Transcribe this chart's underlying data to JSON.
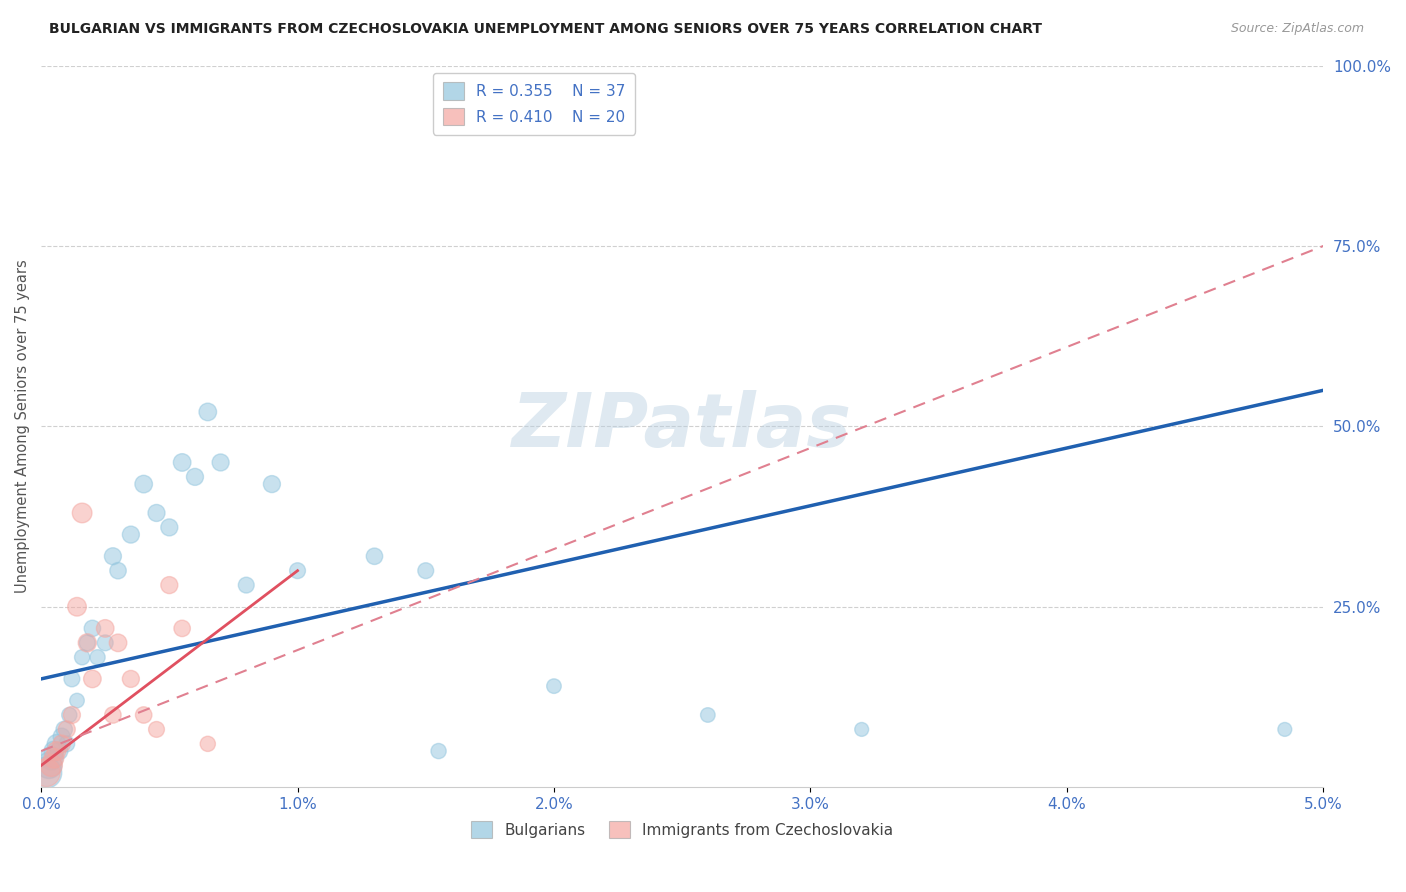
{
  "title": "BULGARIAN VS IMMIGRANTS FROM CZECHOSLOVAKIA UNEMPLOYMENT AMONG SENIORS OVER 75 YEARS CORRELATION CHART",
  "source": "Source: ZipAtlas.com",
  "ylabel": "Unemployment Among Seniors over 75 years",
  "watermark": "ZIPatlas",
  "xlim": [
    0.0,
    5.0
  ],
  "ylim": [
    0.0,
    100.0
  ],
  "legend_r1": "R = 0.355",
  "legend_n1": "N = 37",
  "legend_r2": "R = 0.410",
  "legend_n2": "N = 20",
  "bulgarian_color": "#92c5de",
  "czech_color": "#f4a6a0",
  "trend_blue": "#2060b0",
  "trend_pink_solid": "#e05060",
  "trend_pink_dash": "#e08090",
  "blue_trend_x0": 0.0,
  "blue_trend_y0": 15.0,
  "blue_trend_x1": 5.0,
  "blue_trend_y1": 55.0,
  "pink_solid_x0": 0.0,
  "pink_solid_y0": 3.0,
  "pink_solid_x1": 1.0,
  "pink_solid_y1": 30.0,
  "pink_dash_x0": 0.0,
  "pink_dash_y0": 5.0,
  "pink_dash_x1": 5.0,
  "pink_dash_y1": 75.0,
  "bulgarians_x": [
    0.02,
    0.03,
    0.04,
    0.05,
    0.06,
    0.07,
    0.08,
    0.09,
    0.1,
    0.11,
    0.12,
    0.14,
    0.16,
    0.18,
    0.2,
    0.22,
    0.25,
    0.28,
    0.3,
    0.35,
    0.4,
    0.45,
    0.5,
    0.55,
    0.6,
    0.65,
    0.7,
    0.8,
    0.9,
    1.0,
    1.3,
    1.5,
    1.55,
    2.0,
    2.6,
    3.2,
    4.85
  ],
  "bulgarians_y": [
    2,
    3,
    4,
    5,
    6,
    5,
    7,
    8,
    6,
    10,
    15,
    12,
    18,
    20,
    22,
    18,
    20,
    32,
    30,
    35,
    42,
    38,
    36,
    45,
    43,
    52,
    45,
    28,
    42,
    30,
    32,
    30,
    5,
    14,
    10,
    8,
    8
  ],
  "bulgarians_size": [
    500,
    350,
    280,
    200,
    180,
    160,
    150,
    140,
    130,
    120,
    130,
    110,
    120,
    130,
    140,
    120,
    130,
    150,
    140,
    150,
    160,
    150,
    150,
    160,
    150,
    160,
    150,
    130,
    150,
    130,
    140,
    130,
    120,
    110,
    110,
    100,
    100
  ],
  "czech_x": [
    0.02,
    0.04,
    0.05,
    0.06,
    0.08,
    0.1,
    0.12,
    0.14,
    0.16,
    0.18,
    0.2,
    0.25,
    0.28,
    0.3,
    0.35,
    0.4,
    0.45,
    0.5,
    0.55,
    0.65
  ],
  "czech_y": [
    2,
    3,
    4,
    5,
    6,
    8,
    10,
    25,
    38,
    20,
    15,
    22,
    10,
    20,
    15,
    10,
    8,
    28,
    22,
    6
  ],
  "czech_size": [
    400,
    250,
    200,
    180,
    160,
    150,
    150,
    180,
    200,
    170,
    160,
    160,
    140,
    160,
    150,
    140,
    130,
    150,
    140,
    120
  ]
}
